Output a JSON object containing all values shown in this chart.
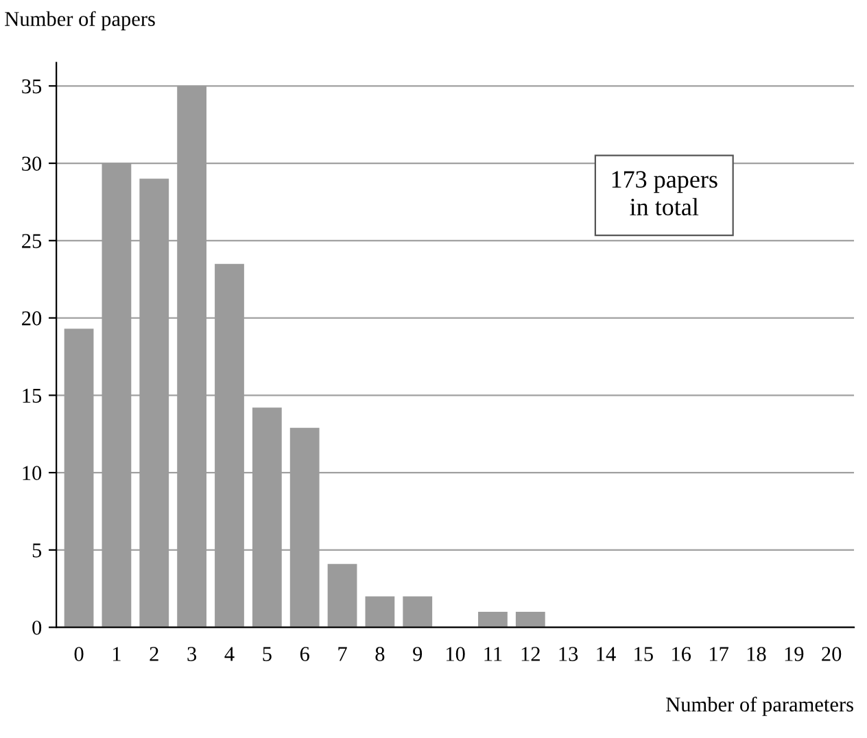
{
  "chart_data": {
    "type": "bar",
    "categories": [
      "0",
      "1",
      "2",
      "3",
      "4",
      "5",
      "6",
      "7",
      "8",
      "9",
      "10",
      "11",
      "12",
      "13",
      "14",
      "15",
      "16",
      "17",
      "18",
      "19",
      "20"
    ],
    "values": [
      19.3,
      30,
      29,
      35,
      23.5,
      14.2,
      12.9,
      4.1,
      2,
      2,
      0,
      1,
      1,
      0,
      0,
      0,
      0,
      0,
      0,
      0,
      0
    ],
    "color": "#9b9b9b",
    "ylim": [
      0,
      36.5
    ],
    "yticks": [
      0,
      5,
      10,
      15,
      20,
      25,
      30,
      35
    ],
    "grid": "y",
    "xlabel": "Number of parameters",
    "ylabel": "Number of papers",
    "annotations": [
      "173 papers\nin total"
    ]
  }
}
